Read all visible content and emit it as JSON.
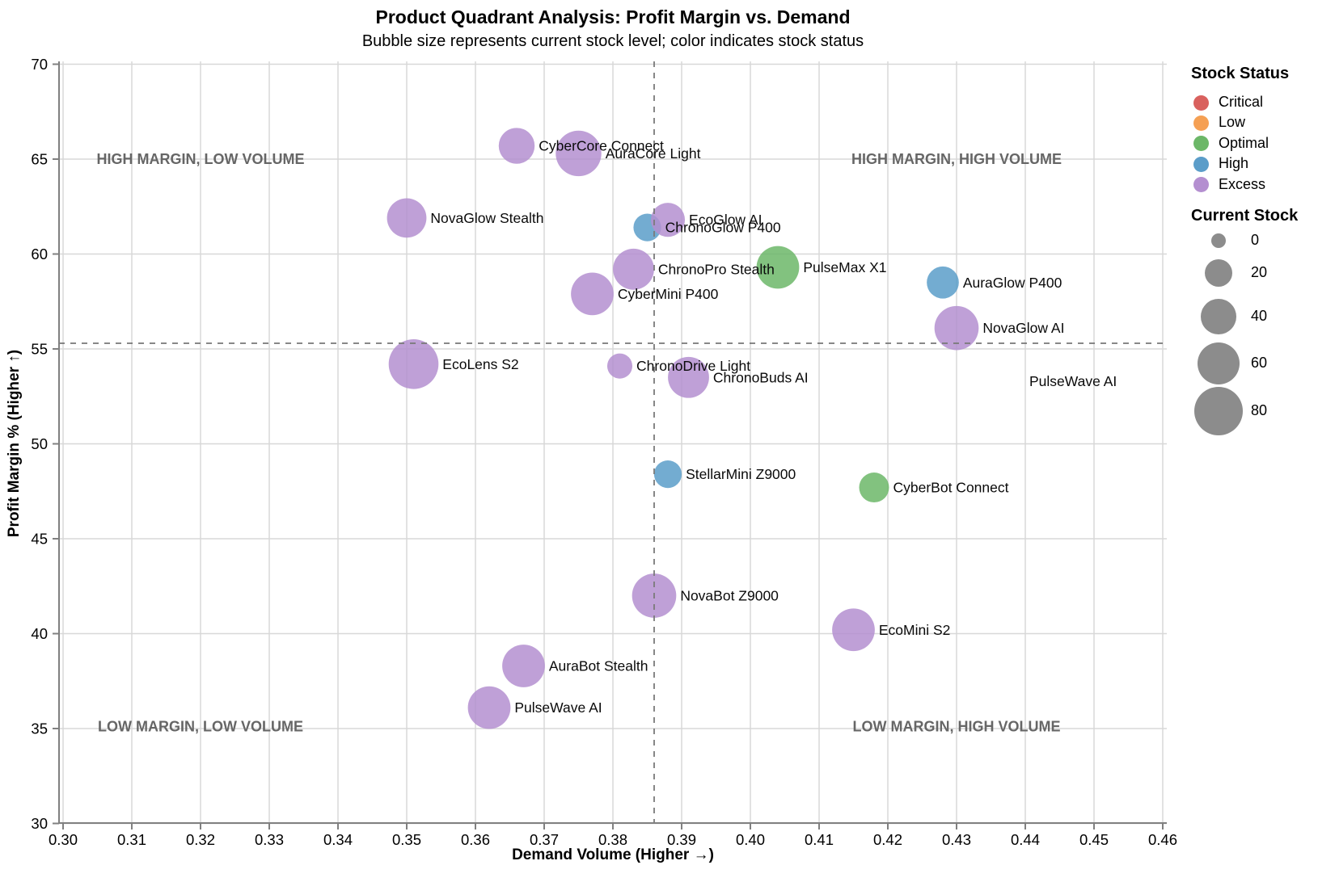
{
  "title": "Product Quadrant Analysis: Profit Margin vs. Demand",
  "subtitle": "Bubble size represents current stock level; color indicates stock status",
  "chart_data": {
    "type": "scatter",
    "xlabel": "Demand Volume (Higher →)",
    "ylabel": "Profit Margin % (Higher ↑)",
    "xlim": [
      0.2994,
      0.4606
    ],
    "ylim": [
      30,
      70
    ],
    "x_ticks": [
      "0.30",
      "0.31",
      "0.32",
      "0.33",
      "0.34",
      "0.35",
      "0.36",
      "0.37",
      "0.38",
      "0.39",
      "0.40",
      "0.41",
      "0.42",
      "0.43",
      "0.44",
      "0.45",
      "0.46"
    ],
    "y_ticks": [
      "30",
      "35",
      "40",
      "45",
      "50",
      "55",
      "60",
      "65",
      "70"
    ],
    "grid": true,
    "divider_x": 0.386,
    "divider_y": 55.3,
    "quadrant_labels": [
      {
        "text": "HIGH MARGIN, LOW VOLUME",
        "x": 0.32,
        "y": 65.0
      },
      {
        "text": "HIGH MARGIN, HIGH VOLUME",
        "x": 0.43,
        "y": 65.0
      },
      {
        "text": "LOW MARGIN, LOW VOLUME",
        "x": 0.32,
        "y": 35.1
      },
      {
        "text": "LOW MARGIN, HIGH VOLUME",
        "x": 0.43,
        "y": 35.1
      }
    ],
    "points": [
      {
        "name": "CyberCore Connect",
        "x": 0.366,
        "y": 65.7,
        "stock": 40,
        "status": "Excess"
      },
      {
        "name": "AuraCore Light",
        "x": 0.375,
        "y": 65.3,
        "stock": 70,
        "status": "Excess"
      },
      {
        "name": "NovaGlow Stealth",
        "x": 0.35,
        "y": 61.9,
        "stock": 50,
        "status": "Excess"
      },
      {
        "name": "ChronoGlow P400",
        "x": 0.385,
        "y": 61.4,
        "stock": 20,
        "status": "High"
      },
      {
        "name": "EcoGlow AI",
        "x": 0.388,
        "y": 61.8,
        "stock": 35,
        "status": "Excess"
      },
      {
        "name": "ChronoPro Stealth",
        "x": 0.383,
        "y": 59.2,
        "stock": 55,
        "status": "Excess"
      },
      {
        "name": "CyberMini P400",
        "x": 0.377,
        "y": 57.9,
        "stock": 60,
        "status": "Excess"
      },
      {
        "name": "PulseMax X1",
        "x": 0.404,
        "y": 59.3,
        "stock": 60,
        "status": "Optimal"
      },
      {
        "name": "AuraGlow P400",
        "x": 0.428,
        "y": 58.5,
        "stock": 30,
        "status": "High"
      },
      {
        "name": "NovaGlow AI",
        "x": 0.43,
        "y": 56.1,
        "stock": 65,
        "status": "Excess"
      },
      {
        "name": "EcoLens S2",
        "x": 0.351,
        "y": 54.2,
        "stock": 85,
        "status": "Excess"
      },
      {
        "name": "ChronoDrive Light",
        "x": 0.381,
        "y": 54.1,
        "stock": 15,
        "status": "Excess"
      },
      {
        "name": "ChronoBuds AI",
        "x": 0.391,
        "y": 53.5,
        "stock": 55,
        "status": "Excess"
      },
      {
        "name": "PulseWave AI",
        "x": 0.44,
        "y": 53.3,
        "stock": 0,
        "status": "Critical"
      },
      {
        "name": "StellarMini Z9000",
        "x": 0.388,
        "y": 48.4,
        "stock": 20,
        "status": "High"
      },
      {
        "name": "CyberBot Connect",
        "x": 0.418,
        "y": 47.7,
        "stock": 25,
        "status": "Optimal"
      },
      {
        "name": "NovaBot Z9000",
        "x": 0.386,
        "y": 42.0,
        "stock": 65,
        "status": "Excess"
      },
      {
        "name": "EcoMini S2",
        "x": 0.415,
        "y": 40.2,
        "stock": 60,
        "status": "Excess"
      },
      {
        "name": "AuraBot Stealth",
        "x": 0.367,
        "y": 38.3,
        "stock": 60,
        "status": "Excess"
      },
      {
        "name": "PulseWave AI",
        "x": 0.362,
        "y": 36.1,
        "stock": 60,
        "status": "Excess"
      }
    ]
  },
  "legend": {
    "status_title": "Stock Status",
    "statuses": [
      {
        "label": "Critical",
        "color": "#d9615e"
      },
      {
        "label": "Low",
        "color": "#f5a054"
      },
      {
        "label": "Optimal",
        "color": "#6cb768"
      },
      {
        "label": "High",
        "color": "#5b9dc9"
      },
      {
        "label": "Excess",
        "color": "#b48fd0"
      }
    ],
    "size_title": "Current Stock",
    "sizes": [
      "0",
      "20",
      "40",
      "60",
      "80"
    ],
    "size_swatch_color": "#8c8c8c"
  },
  "style": {
    "grid_color": "#d8d8d8",
    "spine_color": "#808080",
    "divider_color": "#7a7a7a",
    "quadrant_label_color": "#666666",
    "bubble_opacity": 0.85
  }
}
